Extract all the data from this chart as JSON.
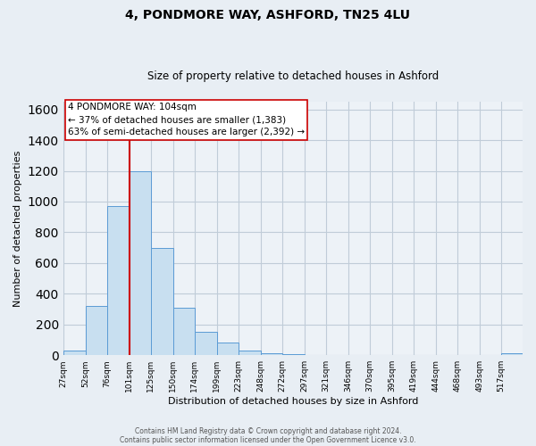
{
  "title": "4, PONDMORE WAY, ASHFORD, TN25 4LU",
  "subtitle": "Size of property relative to detached houses in Ashford",
  "xlabel": "Distribution of detached houses by size in Ashford",
  "ylabel": "Number of detached properties",
  "bar_values": [
    30,
    320,
    970,
    1200,
    700,
    310,
    150,
    80,
    30,
    15,
    5,
    2,
    1,
    1,
    1,
    1,
    1,
    1,
    1,
    1,
    15
  ],
  "bin_edges": [
    27,
    52,
    76,
    101,
    125,
    150,
    174,
    199,
    223,
    248,
    272,
    297,
    321,
    346,
    370,
    395,
    419,
    444,
    468,
    493,
    517,
    541
  ],
  "tick_labels": [
    "27sqm",
    "52sqm",
    "76sqm",
    "101sqm",
    "125sqm",
    "150sqm",
    "174sqm",
    "199sqm",
    "223sqm",
    "248sqm",
    "272sqm",
    "297sqm",
    "321sqm",
    "346sqm",
    "370sqm",
    "395sqm",
    "419sqm",
    "444sqm",
    "468sqm",
    "493sqm",
    "517sqm"
  ],
  "bar_color": "#c8dff0",
  "bar_edge_color": "#5b9bd5",
  "vline_x": 101,
  "vline_color": "#cc0000",
  "ylim": [
    0,
    1650
  ],
  "yticks": [
    0,
    200,
    400,
    600,
    800,
    1000,
    1200,
    1400,
    1600
  ],
  "annotation_title": "4 PONDMORE WAY: 104sqm",
  "annotation_line1": "← 37% of detached houses are smaller (1,383)",
  "annotation_line2": "63% of semi-detached houses are larger (2,392) →",
  "annotation_box_color": "#ffffff",
  "annotation_box_edge": "#cc0000",
  "footer1": "Contains HM Land Registry data © Crown copyright and database right 2024.",
  "footer2": "Contains public sector information licensed under the Open Government Licence v3.0.",
  "background_color": "#e8eef4",
  "plot_background": "#edf2f7",
  "grid_color": "#c0ccd8"
}
